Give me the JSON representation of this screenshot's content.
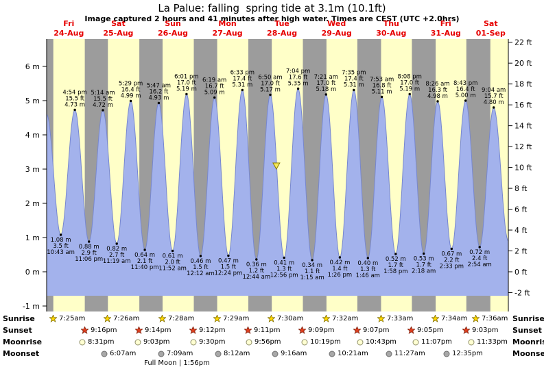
{
  "title": "La Palue: falling  spring tide at 3.1m (10.1ft)",
  "subtitle": "Image captured 2 hours and 41 minutes after high water. Times are CEST (UTC +2.0hrs)",
  "colors": {
    "day_band": "#ffffc8",
    "night_band": "#9c9c9c",
    "water": "#a3b2ec",
    "water_edge": "#7787cf",
    "day_label": "#e60000",
    "marker_fill": "#f5e95a",
    "marker_stroke": "#8a7d00",
    "sunrise_star": "#ffd700",
    "sunrise_star_stroke": "#806f00",
    "sunset_star": "#e04020",
    "sunset_star_stroke": "#7c1d0a",
    "moonrise_fill": "#ffffd2",
    "moonrise_stroke": "#8f8f6a",
    "moonset_fill": "#a8a8a8",
    "moonset_stroke": "#6e6e6e",
    "text": "#000000"
  },
  "chart_data": {
    "type": "area",
    "title": "La Palue: falling  spring tide at 3.1m (10.1ft)",
    "subtitle": "Image captured 2 hours and 41 minutes after high water. Times are CEST (UTC +2.0hrs)",
    "y_axis_left": {
      "unit": "m",
      "ticks": [
        -1,
        0,
        1,
        2,
        3,
        4,
        5,
        6
      ]
    },
    "y_axis_right": {
      "unit": "ft",
      "ticks": [
        -2,
        0,
        2,
        4,
        6,
        8,
        10,
        12,
        14,
        16,
        18,
        20,
        22
      ]
    },
    "days": [
      {
        "name": "Fri",
        "date": "24-Aug",
        "sunrise": "7:25am",
        "sunset": "9:16pm",
        "moonrise": "8:31pm",
        "moonset": null
      },
      {
        "name": "Sat",
        "date": "25-Aug",
        "sunrise": "7:26am",
        "sunset": "9:14pm",
        "moonrise": "9:03pm",
        "moonset": "6:07am"
      },
      {
        "name": "Sun",
        "date": "26-Aug",
        "sunrise": "7:28am",
        "sunset": "9:12pm",
        "moonrise": "9:30pm",
        "moonset": "7:09am"
      },
      {
        "name": "Mon",
        "date": "27-Aug",
        "sunrise": "7:29am",
        "sunset": "9:11pm",
        "moonrise": "9:56pm",
        "moonset": "8:12am"
      },
      {
        "name": "Tue",
        "date": "28-Aug",
        "sunrise": "7:30am",
        "sunset": "9:09pm",
        "moonrise": "10:19pm",
        "moonset": "9:16am"
      },
      {
        "name": "Wed",
        "date": "29-Aug",
        "sunrise": "7:32am",
        "sunset": "9:07pm",
        "moonrise": "10:43pm",
        "moonset": "10:21am"
      },
      {
        "name": "Thu",
        "date": "30-Aug",
        "sunrise": "7:33am",
        "sunset": "9:05pm",
        "moonrise": "11:07pm",
        "moonset": "11:27am"
      },
      {
        "name": "Fri",
        "date": "31-Aug",
        "sunrise": "7:34am",
        "sunset": "9:03pm",
        "moonrise": "11:33pm",
        "moonset": "12:35pm"
      },
      {
        "name": "Sat",
        "date": "01-Sep",
        "sunrise": "7:36am",
        "sunset": null,
        "moonrise": null,
        "moonset": null
      }
    ],
    "tides": [
      {
        "kind": "low",
        "day": 0,
        "time": "10:43 am",
        "ft": "3.5 ft",
        "m": "1.08 m"
      },
      {
        "kind": "high",
        "day": 0,
        "time": "4:54 pm",
        "ft": "15.5 ft",
        "m": "4.73 m"
      },
      {
        "kind": "low",
        "day": 0,
        "time": "11:06 pm",
        "ft": "2.9 ft",
        "m": "0.88 m"
      },
      {
        "kind": "high",
        "day": 1,
        "time": "5:14 am",
        "ft": "15.5 ft",
        "m": "4.72 m"
      },
      {
        "kind": "low",
        "day": 1,
        "time": "11:19 am",
        "ft": "2.7 ft",
        "m": "0.82 m"
      },
      {
        "kind": "high",
        "day": 1,
        "time": "5:29 pm",
        "ft": "16.4 ft",
        "m": "4.99 m"
      },
      {
        "kind": "low",
        "day": 1,
        "time": "11:40 pm",
        "ft": "2.1 ft",
        "m": "0.64 m"
      },
      {
        "kind": "high",
        "day": 2,
        "time": "5:47 am",
        "ft": "16.2 ft",
        "m": "4.93 m"
      },
      {
        "kind": "low",
        "day": 2,
        "time": "11:52 am",
        "ft": "2.0 ft",
        "m": "0.61 m"
      },
      {
        "kind": "high",
        "day": 2,
        "time": "6:01 pm",
        "ft": "17.0 ft",
        "m": "5.19 m"
      },
      {
        "kind": "low",
        "day": 3,
        "time": "12:12 am",
        "ft": "1.5 ft",
        "m": "0.46 m"
      },
      {
        "kind": "high",
        "day": 3,
        "time": "6:19 am",
        "ft": "16.7 ft",
        "m": "5.09 m"
      },
      {
        "kind": "low",
        "day": 3,
        "time": "12:24 pm",
        "ft": "1.5 ft",
        "m": "0.47 m"
      },
      {
        "kind": "high",
        "day": 3,
        "time": "6:33 pm",
        "ft": "17.4 ft",
        "m": "5.31 m"
      },
      {
        "kind": "low",
        "day": 4,
        "time": "12:44 am",
        "ft": "1.2 ft",
        "m": "0.36 m"
      },
      {
        "kind": "high",
        "day": 4,
        "time": "6:50 am",
        "ft": "17.0 ft",
        "m": "5.17 m"
      },
      {
        "kind": "low",
        "day": 4,
        "time": "12:56 pm",
        "ft": "1.3 ft",
        "m": "0.41 m"
      },
      {
        "kind": "high",
        "day": 4,
        "time": "7:04 pm",
        "ft": "17.6 ft",
        "m": "5.35 m"
      },
      {
        "kind": "low",
        "day": 5,
        "time": "1:15 am",
        "ft": "1.1 ft",
        "m": "0.34 m"
      },
      {
        "kind": "high",
        "day": 5,
        "time": "7:21 am",
        "ft": "17.0 ft",
        "m": "5.18 m"
      },
      {
        "kind": "low",
        "day": 5,
        "time": "1:26 pm",
        "ft": "1.4 ft",
        "m": "0.42 m"
      },
      {
        "kind": "high",
        "day": 5,
        "time": "7:35 pm",
        "ft": "17.4 ft",
        "m": "5.31 m"
      },
      {
        "kind": "low",
        "day": 6,
        "time": "1:46 am",
        "ft": "1.3 ft",
        "m": "0.40 m"
      },
      {
        "kind": "high",
        "day": 6,
        "time": "7:53 am",
        "ft": "16.8 ft",
        "m": "5.11 m"
      },
      {
        "kind": "low",
        "day": 6,
        "time": "1:58 pm",
        "ft": "1.7 ft",
        "m": "0.52 m"
      },
      {
        "kind": "high",
        "day": 6,
        "time": "8:08 pm",
        "ft": "17.0 ft",
        "m": "5.19 m"
      },
      {
        "kind": "low",
        "day": 7,
        "time": "2:18 am",
        "ft": "1.7 ft",
        "m": "0.53 m"
      },
      {
        "kind": "high",
        "day": 7,
        "time": "8:26 am",
        "ft": "16.3 ft",
        "m": "4.98 m"
      },
      {
        "kind": "low",
        "day": 7,
        "time": "2:33 pm",
        "ft": "2.2 ft",
        "m": "0.67 m"
      },
      {
        "kind": "high",
        "day": 7,
        "time": "8:43 pm",
        "ft": "16.4 ft",
        "m": "5.00 m"
      },
      {
        "kind": "low",
        "day": 8,
        "time": "2:54 am",
        "ft": "2.4 ft",
        "m": "0.72 m"
      },
      {
        "kind": "high",
        "day": 8,
        "time": "9:04 am",
        "ft": "15.7 ft",
        "m": "4.80 m"
      }
    ],
    "edge_points": [
      {
        "day": 0,
        "time": "4:30 am",
        "height_m": 4.6
      },
      {
        "day": 8,
        "time": "3:30 pm",
        "height_m": 0.9
      }
    ],
    "marker": {
      "day": 4,
      "time": "9:31 am",
      "height_m": 3.1
    }
  },
  "astro": {
    "row_labels": [
      "Sunrise",
      "Sunset",
      "Moonrise",
      "Moonset"
    ],
    "full_moon": {
      "label": "Full Moon | 1:56pm",
      "day": 2,
      "time": "1:56pm"
    }
  }
}
